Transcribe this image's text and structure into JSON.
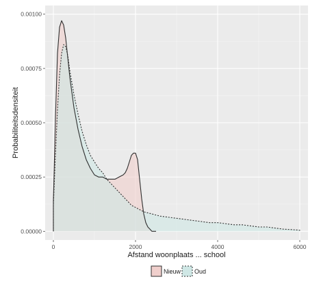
{
  "chart_data": {
    "type": "area",
    "title": "",
    "xlabel": "Afstand woonplaats ... school",
    "ylabel": "Probabiliteitsdensiteit",
    "xlim": [
      -200,
      6200
    ],
    "ylim": [
      -4e-05,
      0.00104
    ],
    "x_ticks": [
      0,
      2000,
      4000,
      6000
    ],
    "x_tick_labels": [
      "0",
      "2000",
      "4000",
      "6000"
    ],
    "y_ticks": [
      0,
      0.00025,
      0.0005,
      0.00075,
      0.001
    ],
    "y_tick_labels": [
      "0.00000",
      "0.00025",
      "0.00050",
      "0.00075",
      "0.00100"
    ],
    "grid": true,
    "legend_position": "bottom",
    "series": [
      {
        "name": "Nieuw",
        "fill": "#f0cfcc",
        "line": "#2e2e2e",
        "linestyle": "solid",
        "x": [
          0,
          50,
          100,
          150,
          200,
          250,
          300,
          350,
          400,
          500,
          600,
          700,
          800,
          900,
          1000,
          1100,
          1200,
          1300,
          1400,
          1500,
          1600,
          1700,
          1750,
          1800,
          1850,
          1900,
          1950,
          2000,
          2050,
          2100,
          2150,
          2200,
          2250,
          2300,
          2350,
          2400,
          2500
        ],
        "y": [
          0.00014,
          0.00052,
          0.00082,
          0.00094,
          0.00097,
          0.00095,
          0.00089,
          0.0008,
          0.00071,
          0.00057,
          0.00047,
          0.00039,
          0.00033,
          0.00029,
          0.00026,
          0.00025,
          0.00025,
          0.00024,
          0.00024,
          0.00024,
          0.00025,
          0.00026,
          0.00027,
          0.00029,
          0.00032,
          0.00035,
          0.00036,
          0.00036,
          0.00033,
          0.00024,
          0.00015,
          8e-05,
          4e-05,
          2e-05,
          1e-05,
          0.0,
          0.0
        ]
      },
      {
        "name": "Oud",
        "fill": "#cfe7e5",
        "line": "#2e2e2e",
        "linestyle": "dashed",
        "x": [
          0,
          50,
          100,
          150,
          200,
          250,
          300,
          350,
          400,
          500,
          600,
          700,
          800,
          900,
          1000,
          1100,
          1200,
          1300,
          1400,
          1500,
          1600,
          1700,
          1800,
          1900,
          2000,
          2100,
          2200,
          2300,
          2400,
          2600,
          2800,
          3000,
          3200,
          3400,
          3600,
          3800,
          4000,
          4200,
          4400,
          4600,
          4800,
          5000,
          5200,
          5400,
          5600,
          5800,
          6000
        ],
        "y": [
          0.00012,
          0.00035,
          0.00056,
          0.00072,
          0.00082,
          0.00086,
          0.00085,
          0.00081,
          0.00074,
          0.00063,
          0.00054,
          0.00046,
          0.0004,
          0.00035,
          0.00032,
          0.00029,
          0.00027,
          0.00024,
          0.00022,
          0.0002,
          0.00018,
          0.00016,
          0.00014,
          0.00012,
          0.00011,
          0.0001,
          9e-05,
          8.5e-05,
          8e-05,
          7e-05,
          6.5e-05,
          6e-05,
          5.5e-05,
          5e-05,
          4.5e-05,
          4e-05,
          4e-05,
          3.5e-05,
          3e-05,
          3e-05,
          2.5e-05,
          2e-05,
          2e-05,
          1.5e-05,
          1e-05,
          8e-06,
          5e-06
        ]
      }
    ]
  }
}
